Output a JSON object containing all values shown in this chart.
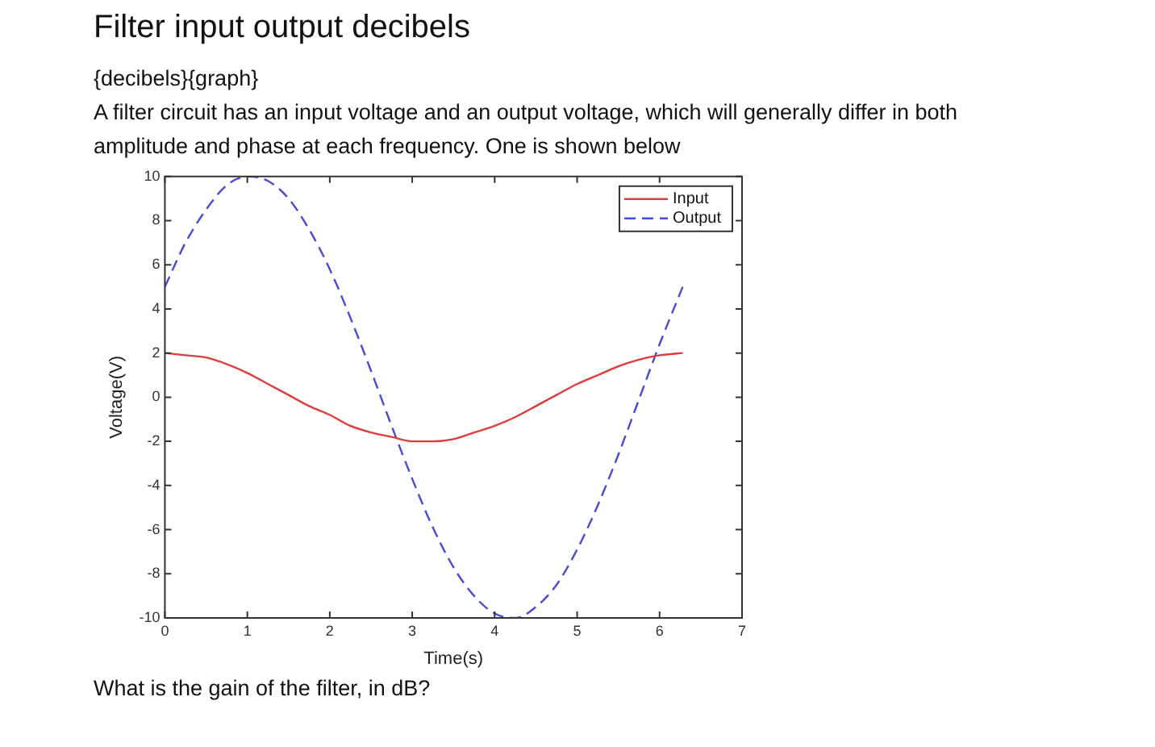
{
  "chart_data": {
    "type": "line",
    "title": "Filter input output decibels",
    "subtitle": "{decibels}{graph}",
    "annotations": [
      "A filter circuit has an input voltage and an output voltage, which will generally differ in both amplitude and phase at each frequency. One is shown below",
      "What is the gain of the filter, in dB?"
    ],
    "xlabel": "Time(s)",
    "ylabel": "Voltage(V)",
    "x": [
      0,
      0.25,
      0.5,
      0.75,
      1,
      1.25,
      1.5,
      1.75,
      2,
      2.25,
      2.5,
      2.75,
      3,
      3.25,
      3.5,
      3.75,
      4,
      4.25,
      4.5,
      4.75,
      5,
      5.25,
      5.5,
      5.75,
      6,
      6.28
    ],
    "series": [
      {
        "name": "Input",
        "color": "#e03c3c",
        "line_style": "solid",
        "values": [
          2,
          1.9,
          1.8,
          1.5,
          1.1,
          0.6,
          0.1,
          -0.4,
          -0.8,
          -1.3,
          -1.6,
          -1.8,
          -2,
          -2,
          -1.9,
          -1.6,
          -1.3,
          -0.9,
          -0.4,
          0.1,
          0.6,
          1,
          1.4,
          1.7,
          1.9,
          2
        ]
      },
      {
        "name": "Output",
        "color": "#4a4ad8",
        "line_style": "dashed",
        "values": [
          5,
          7,
          8.5,
          9.6,
          10,
          9.8,
          9,
          7.6,
          5.8,
          3.6,
          1.2,
          -1.3,
          -3.7,
          -5.9,
          -7.7,
          -9,
          -9.8,
          -10,
          -9.5,
          -8.5,
          -6.9,
          -4.9,
          -2.6,
          -0.1,
          2.4,
          5
        ]
      }
    ],
    "xlim": [
      0,
      7
    ],
    "xticks": [
      0,
      1,
      2,
      3,
      4,
      5,
      6,
      7
    ],
    "ylim": [
      -10,
      10
    ],
    "yticks": [
      -10,
      -8,
      -6,
      -4,
      -2,
      0,
      2,
      4,
      6,
      8,
      10
    ],
    "legend": "top right",
    "marker": "none"
  }
}
